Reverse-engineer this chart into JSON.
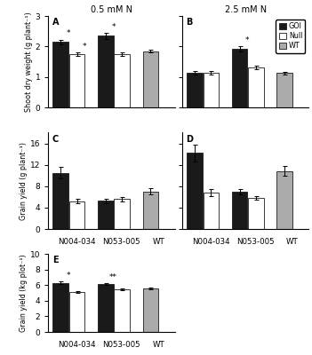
{
  "title_left": "0.5 mM N",
  "title_right": "2.5 mM N",
  "panel_labels": [
    "A",
    "B",
    "C",
    "D",
    "E"
  ],
  "categories": [
    "N004-034",
    "N053-005",
    "WT"
  ],
  "legend_labels": [
    "GOI",
    "Null",
    "WT"
  ],
  "bar_colors": [
    "#1a1a1a",
    "#ffffff",
    "#aaaaaa"
  ],
  "bar_edgecolor": "#1a1a1a",
  "A_values": [
    2.15,
    1.75,
    2.35,
    1.75,
    1.85
  ],
  "A_errors": [
    0.07,
    0.05,
    0.09,
    0.05,
    0.05
  ],
  "A_stars": [
    "*",
    "*",
    "*",
    "",
    ""
  ],
  "A_ylim": [
    0.0,
    3.0
  ],
  "A_yticks": [
    0.0,
    1.0,
    2.0,
    3.0
  ],
  "A_ylabel": "Shoot dry weight (g plant⁻¹)",
  "B_values": [
    1.15,
    1.15,
    1.93,
    1.32,
    1.13
  ],
  "B_errors": [
    0.06,
    0.05,
    0.08,
    0.05,
    0.04
  ],
  "B_stars": [
    "",
    "",
    "*",
    "",
    ""
  ],
  "B_ylim": [
    0.0,
    3.0
  ],
  "B_yticks": [
    0.0,
    1.0,
    2.0,
    3.0
  ],
  "C_values": [
    10.5,
    5.2,
    5.3,
    5.6,
    7.0
  ],
  "C_errors": [
    1.1,
    0.4,
    0.4,
    0.4,
    0.6
  ],
  "C_stars": [
    "",
    "",
    "",
    "",
    ""
  ],
  "C_ylim": [
    0,
    18
  ],
  "C_yticks": [
    0,
    4,
    8,
    12,
    16
  ],
  "C_ylabel": "Grain yield (g plant⁻¹)",
  "D_values": [
    14.2,
    6.8,
    7.0,
    5.8,
    10.8
  ],
  "D_errors": [
    1.6,
    0.6,
    0.5,
    0.4,
    0.9
  ],
  "D_stars": [
    "",
    "",
    "",
    "",
    ""
  ],
  "D_ylim": [
    0,
    18
  ],
  "D_yticks": [
    0,
    4,
    8,
    12,
    16
  ],
  "E_values": [
    6.3,
    5.1,
    6.1,
    5.5,
    5.6
  ],
  "E_errors": [
    0.15,
    0.12,
    0.12,
    0.12,
    0.1
  ],
  "E_stars": [
    "*",
    "",
    "**",
    "",
    ""
  ],
  "E_ylim": [
    0,
    10
  ],
  "E_yticks": [
    0,
    2,
    4,
    6,
    8,
    10
  ],
  "E_ylabel": "Grain yield (kg plot⁻¹)"
}
